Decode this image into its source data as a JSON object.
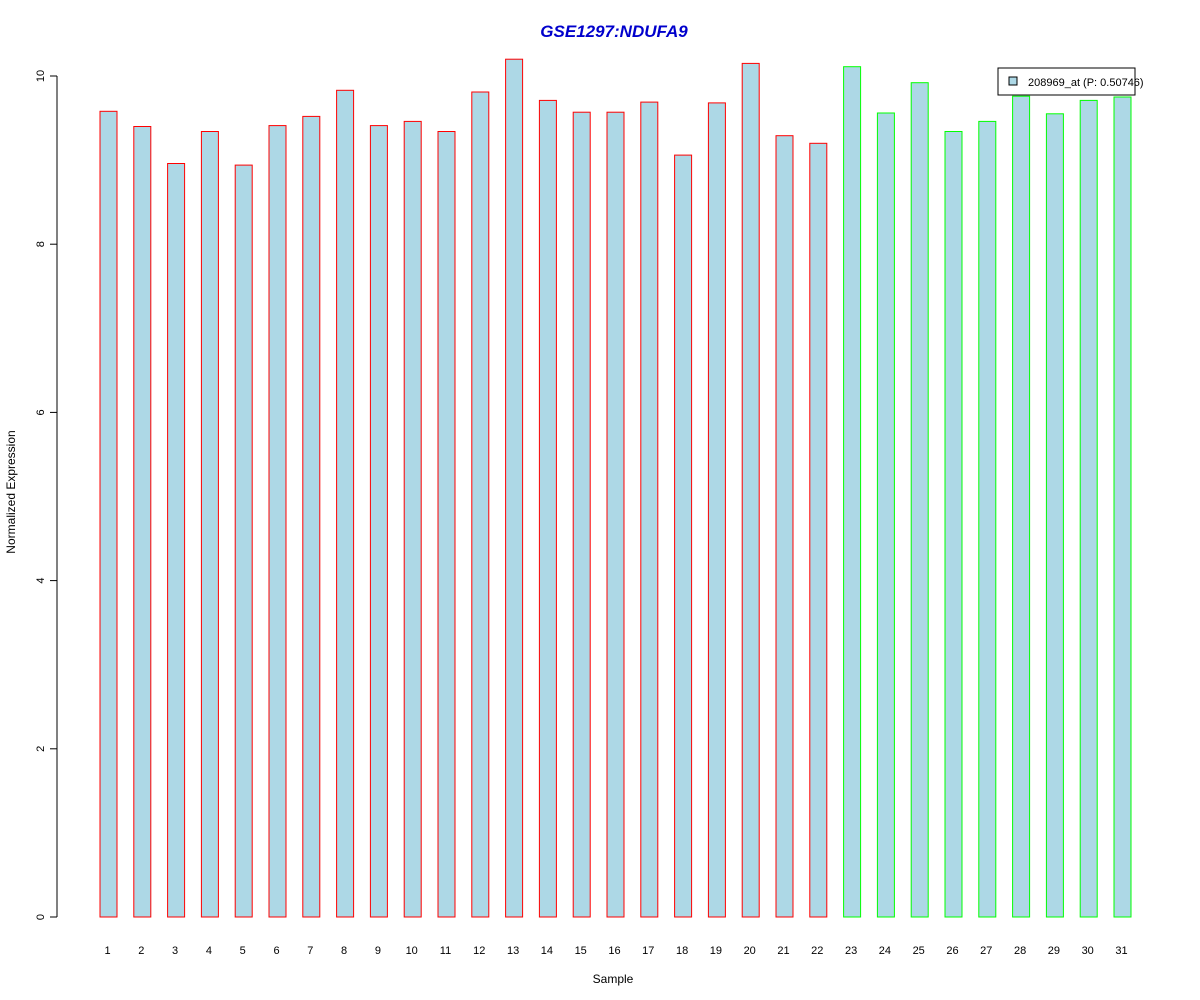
{
  "chart_data": {
    "type": "bar",
    "title": "GSE1297:NDUFA9",
    "xlabel": "Sample",
    "ylabel": "Normalized Expression",
    "ylim": [
      0,
      10
    ],
    "yticks": [
      0,
      2,
      4,
      6,
      8,
      10
    ],
    "grid": false,
    "legend": {
      "position": "top-right",
      "label": "208969_at (P: 0.50746)"
    },
    "categories": [
      "1",
      "2",
      "3",
      "4",
      "5",
      "6",
      "7",
      "8",
      "9",
      "10",
      "11",
      "12",
      "13",
      "14",
      "15",
      "16",
      "17",
      "18",
      "19",
      "20",
      "21",
      "22",
      "23",
      "24",
      "25",
      "26",
      "27",
      "28",
      "29",
      "30",
      "31"
    ],
    "values": [
      9.58,
      9.4,
      8.96,
      9.34,
      8.94,
      9.41,
      9.52,
      9.83,
      9.41,
      9.46,
      9.34,
      9.81,
      10.2,
      9.71,
      9.57,
      9.57,
      9.69,
      9.06,
      9.68,
      10.15,
      9.29,
      9.2,
      10.11,
      9.56,
      9.92,
      9.34,
      9.46,
      9.76,
      9.55,
      9.71,
      9.75
    ],
    "groups": [
      1,
      1,
      1,
      1,
      1,
      1,
      1,
      1,
      1,
      1,
      1,
      1,
      1,
      1,
      1,
      1,
      1,
      1,
      1,
      1,
      1,
      1,
      2,
      2,
      2,
      2,
      2,
      2,
      2,
      2,
      2
    ],
    "colors": {
      "fill": "#add8e6",
      "group1_border": "#ff0000",
      "group2_border": "#00ff00",
      "title": "#0000cc"
    }
  }
}
